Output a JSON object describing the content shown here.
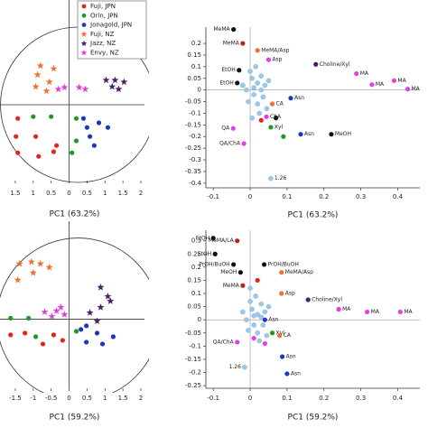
{
  "chart_data": [
    {
      "type": "scatter",
      "x_label": "PC1 (63.2%)",
      "legend": true,
      "ellipse": true,
      "xlim": [
        -1.8,
        2.1
      ],
      "ylim": [
        -2.1,
        2.9
      ],
      "xticks": [
        {
          "value": -1.5,
          "label": "1.5"
        },
        {
          "value": -1,
          "label": "1"
        },
        {
          "value": -0.5,
          "label": "0.5"
        },
        0,
        0.5,
        1,
        1.5,
        2
      ],
      "series": [
        {
          "name": "Fuji, JPN",
          "color": "#e3261c",
          "marker": "circle",
          "x": [
            -1.43,
            -1.48,
            -0.93,
            -0.35,
            -0.43,
            -0.85,
            -1.43
          ],
          "y": [
            -0.38,
            -0.88,
            -0.88,
            -1.13,
            -1.3,
            -1.43,
            -1.33
          ]
        },
        {
          "name": "Orin, JPN",
          "color": "#1e9a1e",
          "marker": "circle",
          "x": [
            -1.0,
            -0.5,
            0.2,
            0.2,
            0.08
          ],
          "y": [
            -0.33,
            -0.33,
            -0.38,
            -1.0,
            -1.33
          ]
        },
        {
          "name": "Jonagold, JPN",
          "color": "#1f35c0",
          "marker": "circle",
          "x": [
            0.4,
            0.5,
            0.83,
            1.08,
            0.58,
            0.7
          ],
          "y": [
            -0.38,
            -0.63,
            -0.5,
            -0.63,
            -0.88,
            -1.13
          ]
        },
        {
          "name": "Fuji, NZ",
          "color": "#f07030",
          "marker": "star",
          "x": [
            -0.8,
            -0.88,
            -0.93,
            -0.55,
            -0.63,
            -0.43
          ],
          "y": [
            1.08,
            0.83,
            0.5,
            0.63,
            0.38,
            1.0
          ]
        },
        {
          "name": "Jazz, NZ",
          "color": "#4b1d6e",
          "marker": "star",
          "x": [
            1.03,
            1.28,
            1.38,
            1.2,
            1.53
          ],
          "y": [
            0.68,
            0.68,
            0.43,
            0.5,
            0.63
          ]
        },
        {
          "name": "Envy, NZ",
          "color": "#e040e0",
          "marker": "star",
          "x": [
            -0.3,
            -0.13,
            0.28,
            0.45
          ],
          "y": [
            0.43,
            0.48,
            0.48,
            0.43
          ]
        }
      ]
    },
    {
      "type": "loading",
      "x_label": "PC1 (63.2%)",
      "xlim": [
        -0.12,
        0.46
      ],
      "ylim": [
        -0.42,
        0.27
      ],
      "xticks": [
        -0.1,
        0,
        0.1,
        0.2,
        0.3,
        0.4
      ],
      "yticks": [
        0.2,
        0.15,
        0.1,
        0.05,
        0,
        -0.05,
        -0.1,
        -0.15,
        -0.2,
        -0.25,
        -0.3,
        -0.35,
        -0.4
      ],
      "points": [
        {
          "x": 0.005,
          "y": 0.05,
          "color": "#9cc8e8"
        },
        {
          "x": 0.02,
          "y": 0.03,
          "color": "#9cc8e8"
        },
        {
          "x": -0.01,
          "y": 0.0,
          "color": "#9cc8e8"
        },
        {
          "x": 0.01,
          "y": -0.02,
          "color": "#9cc8e8"
        },
        {
          "x": 0.03,
          "y": 0.0,
          "color": "#9cc8e8"
        },
        {
          "x": 0.0,
          "y": 0.08,
          "color": "#9cc8e8"
        },
        {
          "x": 0.015,
          "y": 0.1,
          "color": "#9cc8e8"
        },
        {
          "x": 0.04,
          "y": 0.02,
          "color": "#9cc8e8"
        },
        {
          "x": -0.005,
          "y": -0.05,
          "color": "#9cc8e8"
        },
        {
          "x": 0.02,
          "y": -0.06,
          "color": "#9cc8e8"
        },
        {
          "x": 0.035,
          "y": -0.03,
          "color": "#9cc8e8"
        },
        {
          "x": 0.01,
          "y": 0.01,
          "color": "#9cc8e8"
        },
        {
          "x": 0.05,
          "y": 0.04,
          "color": "#9cc8e8"
        },
        {
          "x": -0.02,
          "y": 0.02,
          "color": "#9cc8e8"
        },
        {
          "x": 0.025,
          "y": -0.1,
          "color": "#9cc8e8"
        },
        {
          "x": 0.005,
          "y": -0.12,
          "color": "#9cc8e8"
        },
        {
          "x": 0.045,
          "y": -0.08,
          "color": "#9cc8e8"
        },
        {
          "x": 0.03,
          "y": 0.06,
          "color": "#9cc8e8"
        },
        {
          "x": 0.03,
          "y": -0.13,
          "color": "#e3261c"
        },
        {
          "x": 0.09,
          "y": -0.2,
          "color": "#1e9a1e"
        },
        {
          "x": 0.07,
          "y": -0.12,
          "color": "#111111"
        },
        {
          "x": -0.045,
          "y": 0.26,
          "color": "#111111",
          "label": "MeMA"
        },
        {
          "x": -0.02,
          "y": 0.2,
          "color": "#c0201a",
          "label": "MeMA"
        },
        {
          "x": 0.02,
          "y": 0.17,
          "color": "#f07030",
          "label": "MeMA/Asp"
        },
        {
          "x": 0.05,
          "y": 0.13,
          "color": "#e040e0",
          "label": "Asp"
        },
        {
          "x": -0.03,
          "y": 0.085,
          "color": "#111111",
          "label": "EtOH"
        },
        {
          "x": -0.035,
          "y": 0.03,
          "color": "#111111",
          "label": "EtOH"
        },
        {
          "x": 0.178,
          "y": 0.11,
          "color": "#4b1d6e",
          "label": "Choline/Xyl"
        },
        {
          "x": 0.288,
          "y": 0.07,
          "color": "#e040e0",
          "label": "MA"
        },
        {
          "x": 0.33,
          "y": 0.023,
          "color": "#e040e0",
          "label": "MA"
        },
        {
          "x": 0.39,
          "y": 0.04,
          "color": "#e040e0",
          "label": "MA"
        },
        {
          "x": 0.427,
          "y": 0.004,
          "color": "#e040e0",
          "label": "MA"
        },
        {
          "x": 0.22,
          "y": -0.19,
          "color": "#111111",
          "label": "MeOH"
        },
        {
          "x": 0.056,
          "y": -0.38,
          "color": "#9cc8e8",
          "label": "1.26"
        },
        {
          "x": 0.06,
          "y": -0.06,
          "color": "#f07030",
          "label": "CA"
        },
        {
          "x": 0.11,
          "y": -0.035,
          "color": "#1f35c0",
          "label": "Asn"
        },
        {
          "x": 0.137,
          "y": -0.19,
          "color": "#1f35c0",
          "label": "Asn"
        },
        {
          "x": -0.046,
          "y": -0.165,
          "color": "#e040e0",
          "label": "QA"
        },
        {
          "x": -0.017,
          "y": -0.23,
          "color": "#e040e0",
          "label": "QA/ChA"
        },
        {
          "x": 0.056,
          "y": -0.16,
          "color": "#1e9a1e",
          "label": "Xyl"
        },
        {
          "x": 0.044,
          "y": -0.115,
          "color": "#e040e0",
          "label": "ChA"
        }
      ]
    },
    {
      "type": "scatter",
      "x_label": "PC1 (59.2%)",
      "ellipse": true,
      "xlim": [
        -1.8,
        2.1
      ],
      "ylim": [
        -1.9,
        2.7
      ],
      "xticks": [
        -1.5,
        -1,
        -0.5,
        0,
        0.5,
        1,
        1.5,
        2
      ],
      "series": [
        {
          "color": "#f07030",
          "marker": "star",
          "x": [
            -1.38,
            -1.05,
            -0.8,
            -1.0,
            -0.55,
            -1.43
          ],
          "y": [
            1.53,
            1.58,
            1.53,
            1.28,
            1.43,
            1.08
          ]
        },
        {
          "color": "#4b1d6e",
          "marker": "star",
          "x": [
            0.88,
            1.08,
            1.15,
            0.88,
            0.58,
            0.78
          ],
          "y": [
            0.88,
            0.63,
            0.5,
            0.33,
            0.18,
            -0.05
          ]
        },
        {
          "color": "#e040e0",
          "marker": "star",
          "x": [
            -0.68,
            -0.48,
            -0.35,
            -0.13,
            -0.23
          ],
          "y": [
            0.2,
            0.08,
            0.23,
            0.13,
            0.33
          ]
        },
        {
          "color": "#e3261c",
          "marker": "circle",
          "x": [
            -1.63,
            -1.23,
            -0.43,
            -0.18,
            -0.73
          ],
          "y": [
            -0.43,
            -0.38,
            -0.43,
            -0.58,
            -0.68
          ]
        },
        {
          "color": "#1e9a1e",
          "marker": "circle",
          "x": [
            -1.63,
            -1.13,
            -0.93,
            0.2
          ],
          "y": [
            0.03,
            0.03,
            -0.48,
            -0.33
          ]
        },
        {
          "color": "#1f35c0",
          "marker": "circle",
          "x": [
            0.33,
            0.48,
            0.78,
            1.23,
            0.93,
            0.48
          ],
          "y": [
            -0.28,
            -0.18,
            -0.38,
            -0.48,
            -0.68,
            -0.63
          ]
        }
      ]
    },
    {
      "type": "loading",
      "x_label": "PC1 (59.2%)",
      "xlim": [
        -0.12,
        0.46
      ],
      "ylim": [
        -0.26,
        0.34
      ],
      "xticks": [
        -0.1,
        0,
        0.1,
        0.2,
        0.3,
        0.4
      ],
      "yticks": [
        0.3,
        0.25,
        0.2,
        0.15,
        0.1,
        0.05,
        0,
        -0.05,
        -0.1,
        -0.15,
        -0.2,
        -0.25
      ],
      "points": [
        {
          "x": 0.005,
          "y": 0.04,
          "color": "#9cc8e8"
        },
        {
          "x": 0.02,
          "y": 0.02,
          "color": "#9cc8e8"
        },
        {
          "x": -0.01,
          "y": 0.0,
          "color": "#9cc8e8"
        },
        {
          "x": 0.01,
          "y": -0.02,
          "color": "#9cc8e8"
        },
        {
          "x": 0.03,
          "y": 0.01,
          "color": "#9cc8e8"
        },
        {
          "x": 0.0,
          "y": 0.07,
          "color": "#9cc8e8"
        },
        {
          "x": 0.015,
          "y": 0.09,
          "color": "#9cc8e8"
        },
        {
          "x": 0.04,
          "y": 0.03,
          "color": "#9cc8e8"
        },
        {
          "x": -0.005,
          "y": -0.04,
          "color": "#9cc8e8"
        },
        {
          "x": 0.02,
          "y": -0.05,
          "color": "#9cc8e8"
        },
        {
          "x": 0.035,
          "y": -0.02,
          "color": "#9cc8e8"
        },
        {
          "x": 0.01,
          "y": 0.015,
          "color": "#9cc8e8"
        },
        {
          "x": 0.05,
          "y": 0.05,
          "color": "#9cc8e8"
        },
        {
          "x": -0.02,
          "y": 0.03,
          "color": "#9cc8e8"
        },
        {
          "x": 0.025,
          "y": -0.08,
          "color": "#9cc8e8"
        },
        {
          "x": 0.0,
          "y": 0.12,
          "color": "#9cc8e8"
        },
        {
          "x": 0.045,
          "y": -0.06,
          "color": "#9cc8e8"
        },
        {
          "x": 0.03,
          "y": 0.06,
          "color": "#9cc8e8"
        },
        {
          "x": 0.01,
          "y": -0.07,
          "color": "#e040e0"
        },
        {
          "x": 0.04,
          "y": -0.09,
          "color": "#e040e0"
        },
        {
          "x": 0.02,
          "y": 0.15,
          "color": "#e3261c"
        },
        {
          "x": -0.1,
          "y": 0.31,
          "color": "#111111",
          "label": "EtOH"
        },
        {
          "x": -0.035,
          "y": 0.3,
          "color": "#c0201a",
          "label": "MeMA/LA"
        },
        {
          "x": -0.095,
          "y": 0.25,
          "color": "#111111",
          "label": "EtOH"
        },
        {
          "x": -0.045,
          "y": 0.21,
          "color": "#111111",
          "label": "PrOH/BuOH"
        },
        {
          "x": 0.038,
          "y": 0.21,
          "color": "#111111",
          "label": "PrOH/BuOH"
        },
        {
          "x": -0.026,
          "y": 0.18,
          "color": "#111111",
          "label": "MeOH"
        },
        {
          "x": 0.085,
          "y": 0.18,
          "color": "#f07030",
          "label": "MeMA/Asp"
        },
        {
          "x": 0.085,
          "y": 0.1,
          "color": "#f07030",
          "label": "Asp"
        },
        {
          "x": -0.02,
          "y": 0.13,
          "color": "#c0201a",
          "label": "MeMA"
        },
        {
          "x": 0.157,
          "y": 0.076,
          "color": "#4b1d6e",
          "label": "Choline/Xyl"
        },
        {
          "x": 0.24,
          "y": 0.04,
          "color": "#e040e0",
          "label": "MA"
        },
        {
          "x": 0.317,
          "y": 0.03,
          "color": "#e040e0",
          "label": "MA"
        },
        {
          "x": 0.407,
          "y": 0.03,
          "color": "#e040e0",
          "label": "MA"
        },
        {
          "x": 0.04,
          "y": 0.0,
          "color": "#1f35c0",
          "label": "Asn"
        },
        {
          "x": 0.06,
          "y": -0.05,
          "color": "#1e9a1e",
          "label": "Xyl"
        },
        {
          "x": 0.08,
          "y": -0.06,
          "color": "#f07030",
          "label": "CA"
        },
        {
          "x": -0.035,
          "y": -0.085,
          "color": "#e040e0",
          "label": "QA/ChA"
        },
        {
          "x": -0.015,
          "y": -0.18,
          "color": "#9cc8e8",
          "label": "1.26"
        },
        {
          "x": 0.087,
          "y": -0.14,
          "color": "#1f35c0",
          "label": "Asn"
        },
        {
          "x": 0.1,
          "y": -0.205,
          "color": "#1f35c0",
          "label": "Asn"
        }
      ]
    }
  ]
}
